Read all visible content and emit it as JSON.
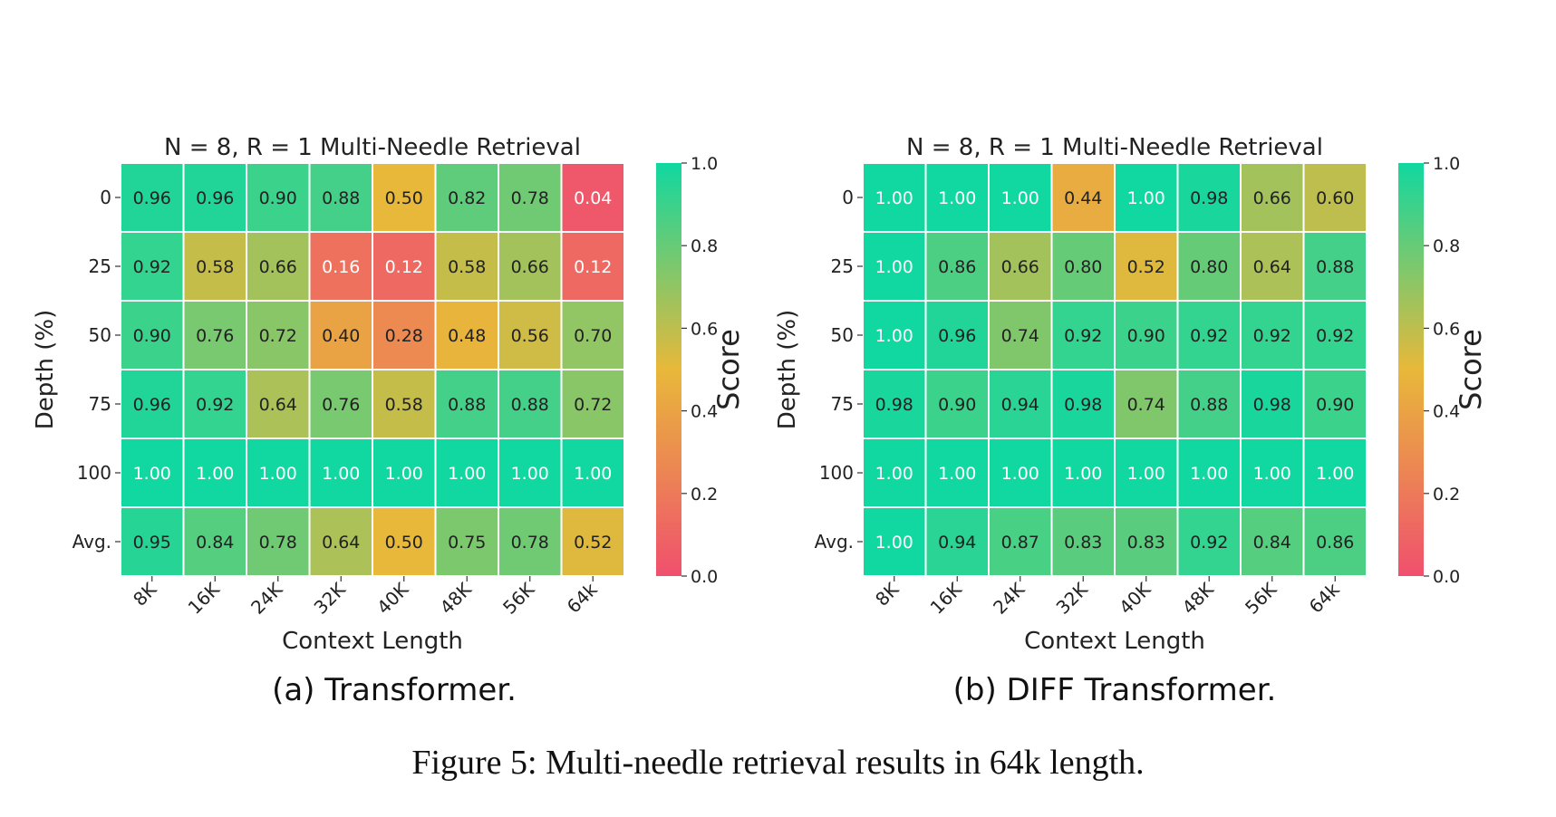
{
  "figure": {
    "caption": "Figure 5: Multi-needle retrieval results in 64k length."
  },
  "chart_data": [
    {
      "type": "heatmap",
      "title": "N = 8, R = 1 Multi-Needle Retrieval",
      "subcaption": "(a) Transformer.",
      "xlabel": "Context Length",
      "ylabel": "Depth (%)",
      "x_categories": [
        "8K",
        "16K",
        "24K",
        "32K",
        "40K",
        "48K",
        "56K",
        "64k"
      ],
      "y_categories": [
        "0",
        "25",
        "50",
        "75",
        "100",
        "Avg."
      ],
      "values": [
        [
          0.96,
          0.96,
          0.9,
          0.88,
          0.5,
          0.82,
          0.78,
          0.04
        ],
        [
          0.92,
          0.58,
          0.66,
          0.16,
          0.12,
          0.58,
          0.66,
          0.12
        ],
        [
          0.9,
          0.76,
          0.72,
          0.4,
          0.28,
          0.48,
          0.56,
          0.7
        ],
        [
          0.96,
          0.92,
          0.64,
          0.76,
          0.58,
          0.88,
          0.88,
          0.72
        ],
        [
          1.0,
          1.0,
          1.0,
          1.0,
          1.0,
          1.0,
          1.0,
          1.0
        ],
        [
          0.95,
          0.84,
          0.78,
          0.64,
          0.5,
          0.75,
          0.78,
          0.52
        ]
      ],
      "colorbar": {
        "label": "Score",
        "range": [
          0.0,
          1.0
        ],
        "ticks": [
          "0.0",
          "0.2",
          "0.4",
          "0.6",
          "0.8",
          "1.0"
        ],
        "colors": [
          "#f0506e",
          "#e8b83a",
          "#10d8a0"
        ]
      }
    },
    {
      "type": "heatmap",
      "title": "N = 8, R = 1 Multi-Needle Retrieval",
      "subcaption": "(b) DIFF Transformer.",
      "xlabel": "Context Length",
      "ylabel": "Depth (%)",
      "x_categories": [
        "8K",
        "16K",
        "24K",
        "32K",
        "40K",
        "48K",
        "56K",
        "64k"
      ],
      "y_categories": [
        "0",
        "25",
        "50",
        "75",
        "100",
        "Avg."
      ],
      "values": [
        [
          1.0,
          1.0,
          1.0,
          0.44,
          1.0,
          0.98,
          0.66,
          0.6
        ],
        [
          1.0,
          0.86,
          0.66,
          0.8,
          0.52,
          0.8,
          0.64,
          0.88
        ],
        [
          1.0,
          0.96,
          0.74,
          0.92,
          0.9,
          0.92,
          0.92,
          0.92
        ],
        [
          0.98,
          0.9,
          0.94,
          0.98,
          0.74,
          0.88,
          0.98,
          0.9
        ],
        [
          1.0,
          1.0,
          1.0,
          1.0,
          1.0,
          1.0,
          1.0,
          1.0
        ],
        [
          1.0,
          0.94,
          0.87,
          0.83,
          0.83,
          0.92,
          0.84,
          0.86
        ]
      ],
      "colorbar": {
        "label": "Score",
        "range": [
          0.0,
          1.0
        ],
        "ticks": [
          "0.0",
          "0.2",
          "0.4",
          "0.6",
          "0.8",
          "1.0"
        ],
        "colors": [
          "#f0506e",
          "#e8b83a",
          "#10d8a0"
        ]
      }
    }
  ]
}
